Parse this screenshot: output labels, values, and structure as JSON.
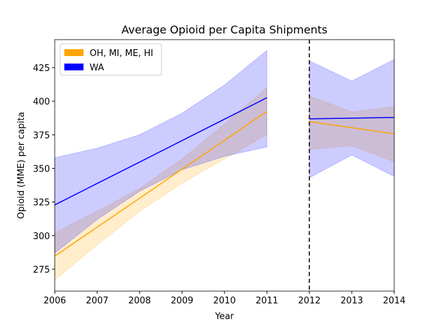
{
  "chart_data": {
    "type": "line",
    "title": "Average Opioid per Capita Shipments",
    "xlabel": "Year",
    "ylabel": "Opioid (MME) per capita",
    "xlim": [
      2006,
      2014
    ],
    "ylim": [
      258.7,
      445.8
    ],
    "xticks": [
      2006,
      2007,
      2008,
      2009,
      2010,
      2011,
      2012,
      2013,
      2014
    ],
    "yticks": [
      275,
      300,
      325,
      350,
      375,
      400,
      425
    ],
    "legend": "upper left",
    "vline": 2012,
    "series": [
      {
        "name": "OH, MI, ME, HI",
        "color": "orange",
        "segments": [
          {
            "x": [
              2006,
              2007,
              2008,
              2009,
              2010,
              2011
            ],
            "values": [
              284.7,
              306.3,
              327.8,
              349.4,
              370.9,
              392.5
            ],
            "lower": [
              267,
              293,
              318,
              339,
              357,
              375
            ],
            "upper": [
              302,
              318,
              335,
              357,
              383,
              410
            ]
          },
          {
            "x": [
              2012,
              2013,
              2014
            ],
            "values": [
              384.8,
              380.3,
              375.7
            ],
            "lower": [
              364,
              367,
              355
            ],
            "upper": [
              404,
              392,
              396
            ]
          }
        ]
      },
      {
        "name": "WA",
        "color": "blue",
        "segments": [
          {
            "x": [
              2006,
              2007,
              2008,
              2009,
              2010,
              2011
            ],
            "values": [
              322.8,
              338.8,
              354.7,
              370.7,
              386.6,
              402.6
            ],
            "lower": [
              287,
              312,
              333,
              349,
              359,
              366
            ],
            "upper": [
              358,
              365,
              375,
              391,
              412,
              437.7
            ]
          },
          {
            "x": [
              2012,
              2013,
              2014
            ],
            "values": [
              386.9,
              387.4,
              387.9
            ],
            "lower": [
              343,
              360,
              344
            ],
            "upper": [
              430,
              415,
              431
            ]
          }
        ]
      }
    ]
  }
}
